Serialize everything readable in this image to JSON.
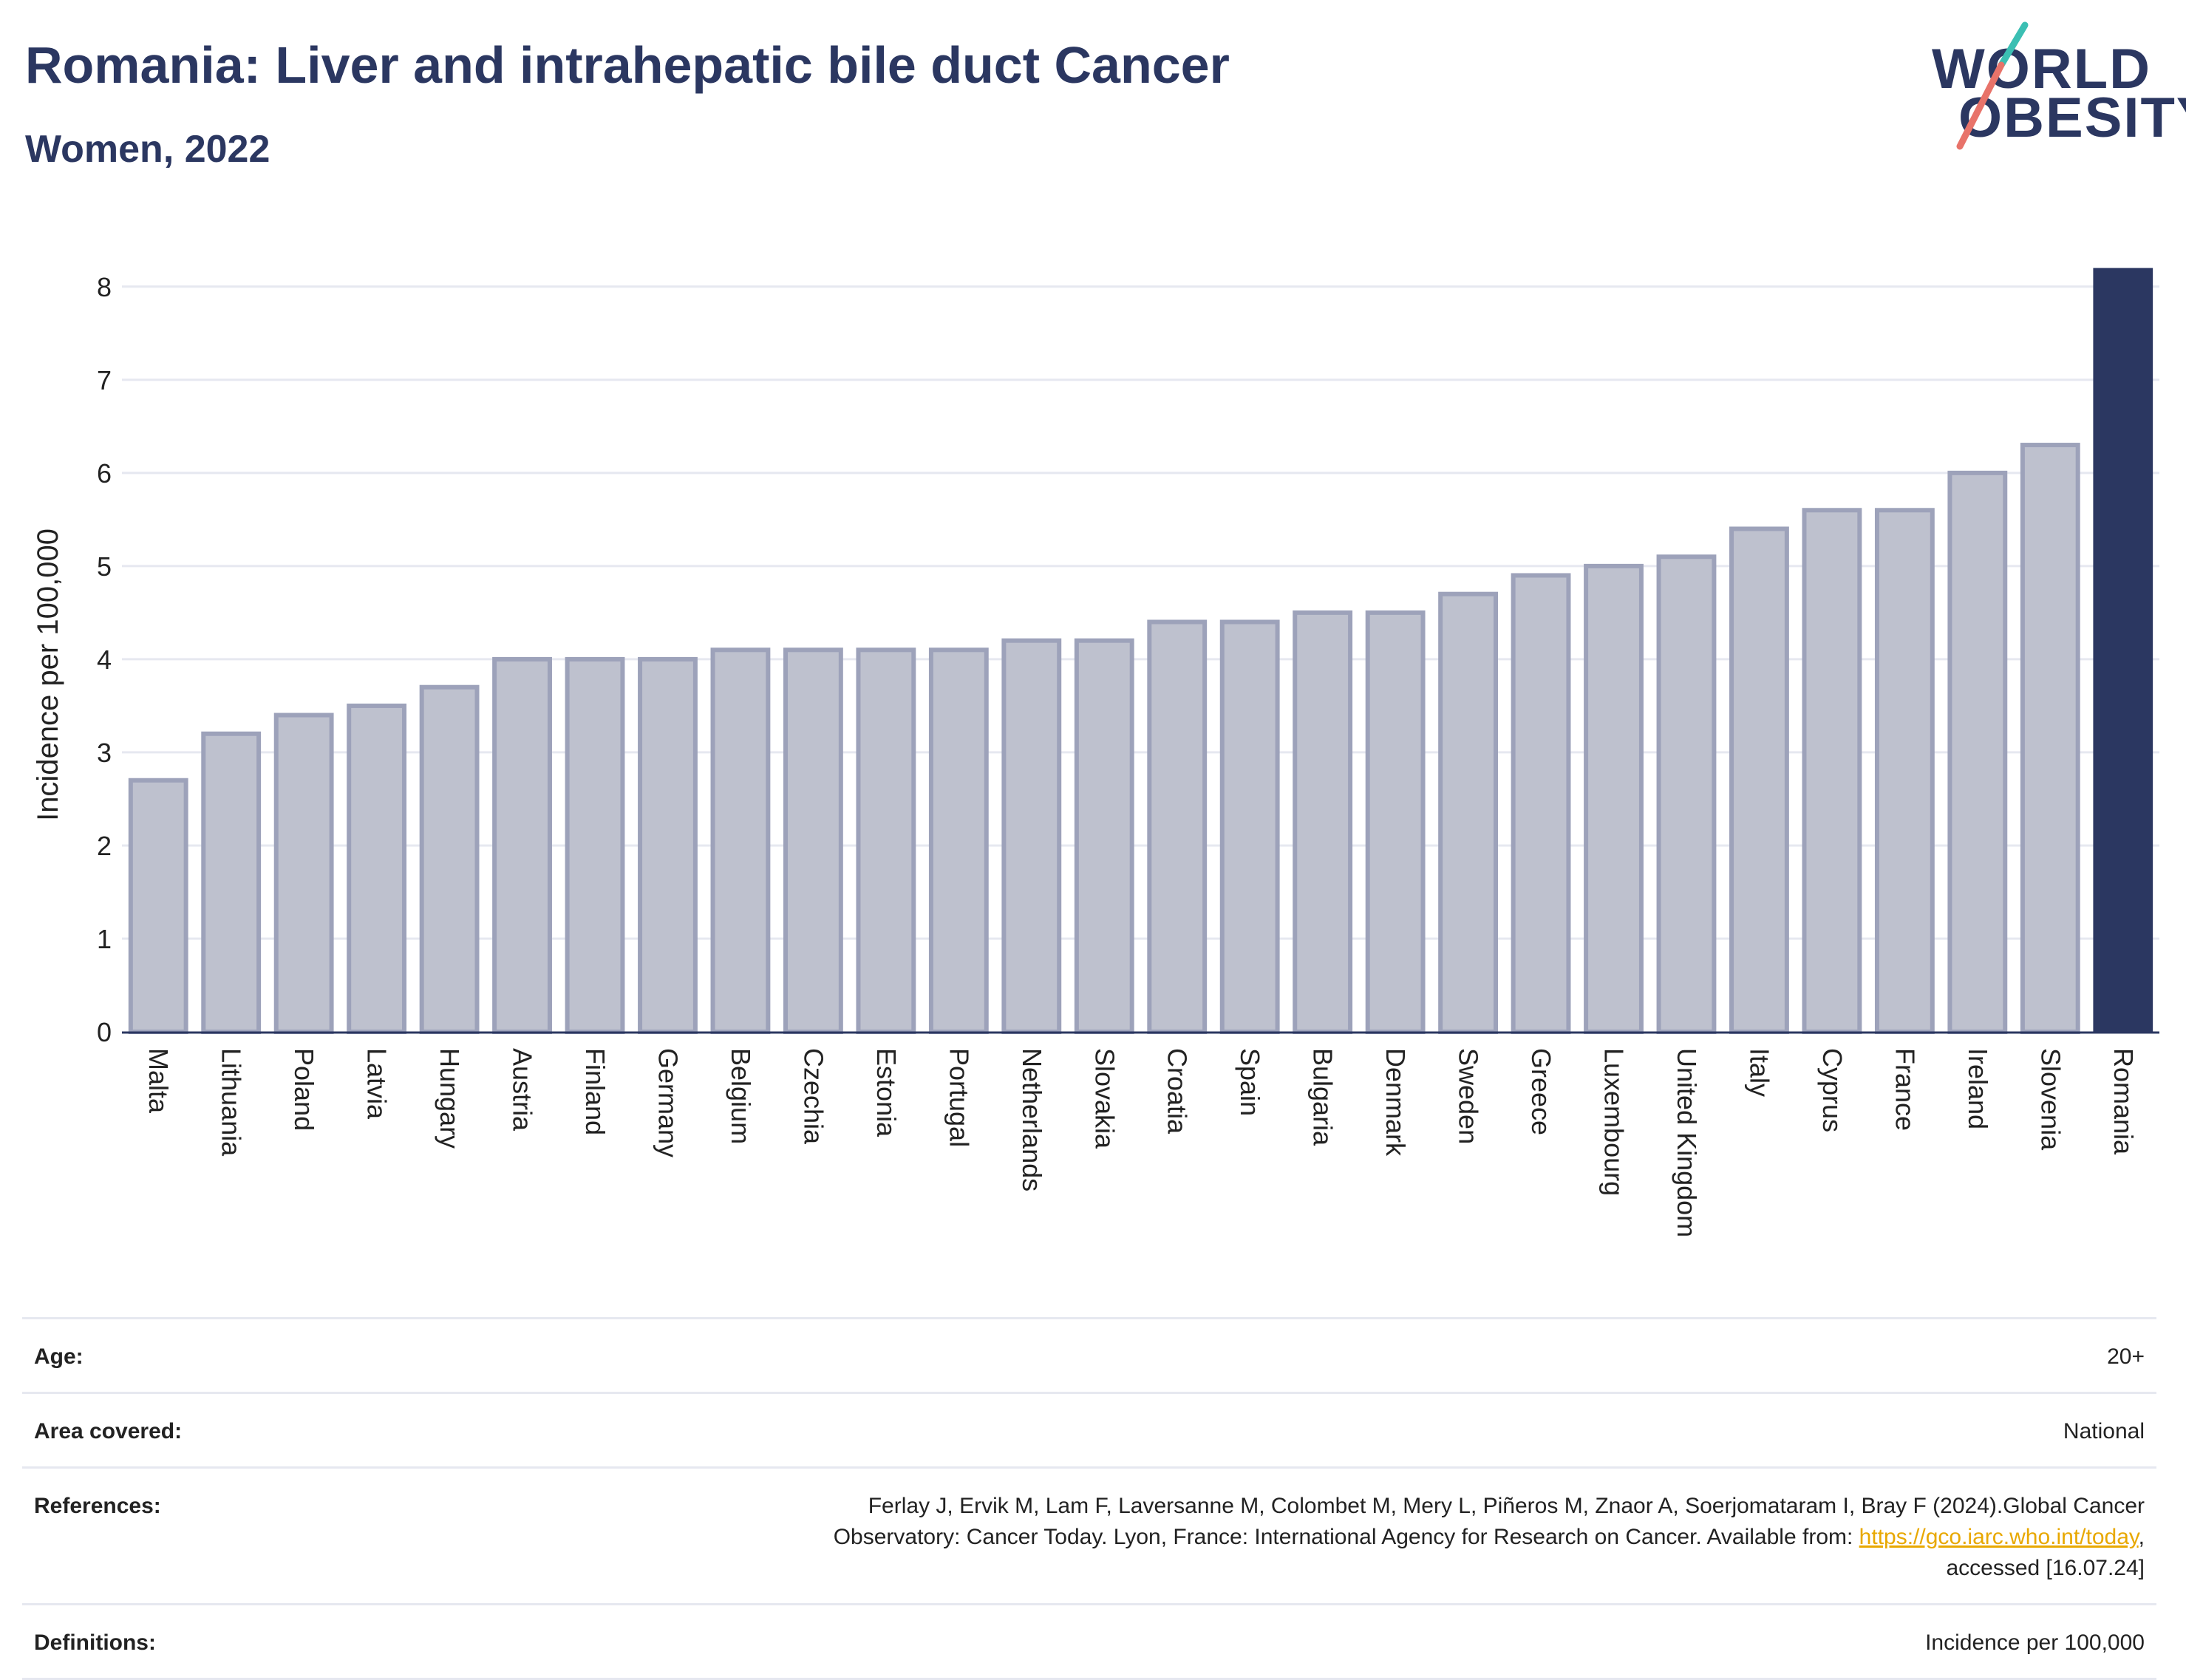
{
  "header": {
    "title": "Romania: Liver and intrahepatic bile duct Cancer",
    "subtitle": "Women, 2022"
  },
  "logo": {
    "line1": "WORLD",
    "line2": "OBESITY",
    "slash_colors": [
      "#3bbfb3",
      "#e8736a"
    ]
  },
  "colors": {
    "highlight_bar": "#2b3761",
    "other_bar_fill": "#bec1ce",
    "other_bar_stroke": "#9da2ba",
    "grid": "#e6e8f0"
  },
  "chart_data": {
    "type": "bar",
    "title": "Romania: Liver and intrahepatic bile duct Cancer",
    "subtitle": "Women, 2022",
    "xlabel": "",
    "ylabel": "Incidence per 100,000",
    "ylim": [
      0,
      8.3
    ],
    "yticks": [
      0,
      1,
      2,
      3,
      4,
      5,
      6,
      7,
      8
    ],
    "grid": true,
    "highlight": "Romania",
    "categories": [
      "Malta",
      "Lithuania",
      "Poland",
      "Latvia",
      "Hungary",
      "Austria",
      "Finland",
      "Germany",
      "Belgium",
      "Czechia",
      "Estonia",
      "Portugal",
      "Netherlands",
      "Slovakia",
      "Croatia",
      "Spain",
      "Bulgaria",
      "Denmark",
      "Sweden",
      "Greece",
      "Luxembourg",
      "United Kingdom",
      "Italy",
      "Cyprus",
      "France",
      "Ireland",
      "Slovenia",
      "Romania"
    ],
    "values": [
      2.7,
      3.2,
      3.4,
      3.5,
      3.7,
      4.0,
      4.0,
      4.0,
      4.1,
      4.1,
      4.1,
      4.1,
      4.2,
      4.2,
      4.4,
      4.4,
      4.5,
      4.5,
      4.7,
      4.9,
      5.0,
      5.1,
      5.4,
      5.6,
      5.6,
      6.0,
      6.3,
      8.2
    ]
  },
  "meta": {
    "rows": [
      {
        "key": "Age:",
        "value": "20+"
      },
      {
        "key": "Area covered:",
        "value": "National"
      },
      {
        "key": "Definitions:",
        "value": "Incidence per 100,000"
      }
    ],
    "references": {
      "key": "References:",
      "line1": "Ferlay J, Ervik M, Lam F, Laversanne M, Colombet M, Mery L, Piñeros M, Znaor A, Soerjomataram I, Bray F (2024).Global Cancer",
      "line2_prefix": "Observatory: Cancer Today. Lyon, France: International Agency for Research on Cancer. Available from: ",
      "link": "https://gco.iarc.who.int/today",
      "line2_suffix": ",",
      "line3": "accessed [16.07.24]"
    }
  }
}
